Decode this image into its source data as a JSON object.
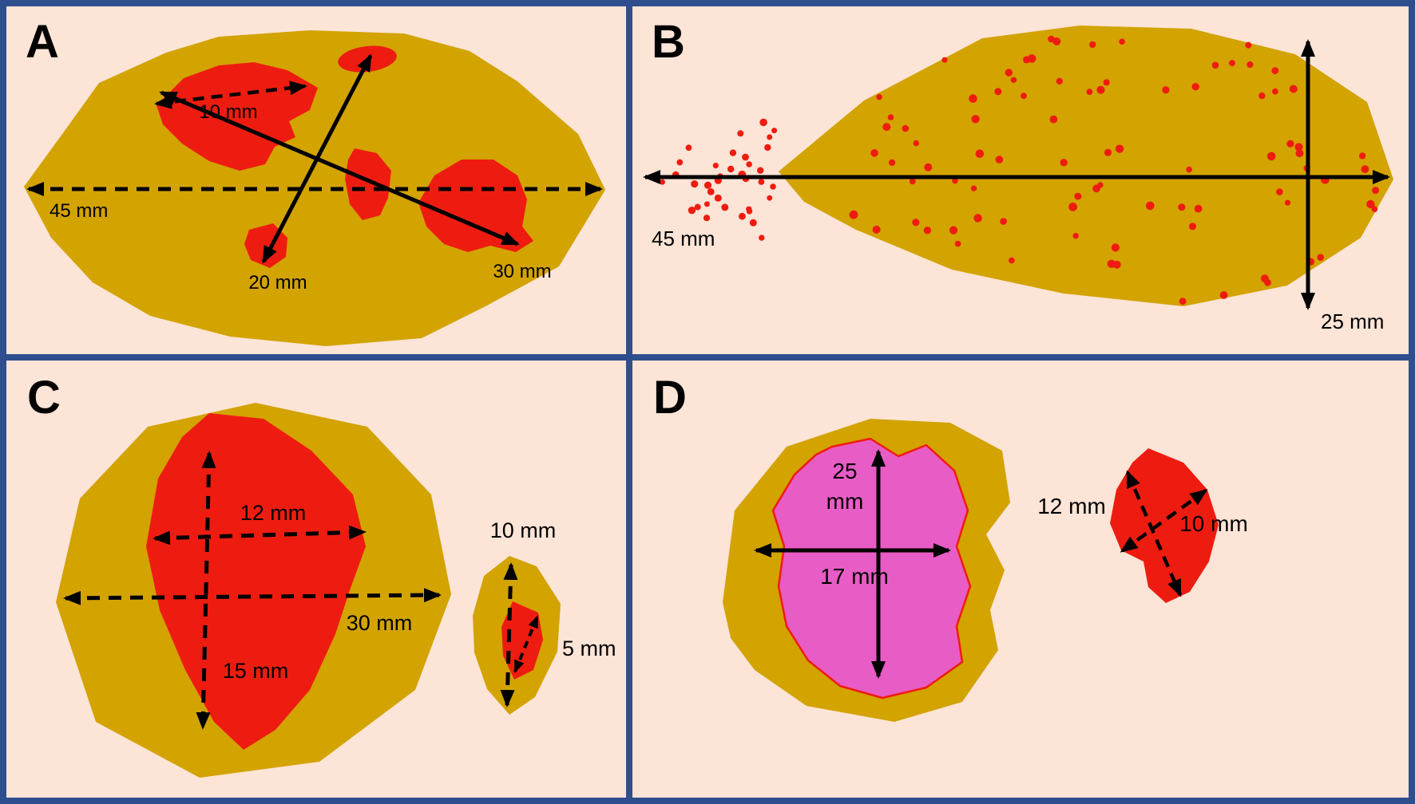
{
  "colors": {
    "frame": "#2f4e8e",
    "panel-bg": "#fce4d6",
    "tissue": "#d3a300",
    "tumor": "#ee1c10",
    "treated": "#e85cc5",
    "arrow": "#000000",
    "ink": "#000000"
  },
  "panels": {
    "A": {
      "label": "A",
      "measurements": {
        "whole_specimen": "45 mm",
        "largest_focus": "10 mm",
        "span_1": "20 mm",
        "span_2": "30 mm"
      }
    },
    "B": {
      "label": "B",
      "measurements": {
        "whole_extent": "45 mm",
        "vertical_extent": "25 mm"
      }
    },
    "C": {
      "label": "C",
      "measurements": {
        "main_focus_width": "12 mm",
        "tumor_bed_width": "30 mm",
        "main_focus_height": "15 mm",
        "satellite_height": "10 mm",
        "satellite_width": "5 mm"
      }
    },
    "D": {
      "label": "D",
      "measurements": {
        "bed_height_value": "25",
        "bed_height_unit": "mm",
        "bed_width": "17 mm",
        "satellite_axis_1": "12 mm",
        "satellite_axis_2": "10 mm"
      }
    }
  }
}
